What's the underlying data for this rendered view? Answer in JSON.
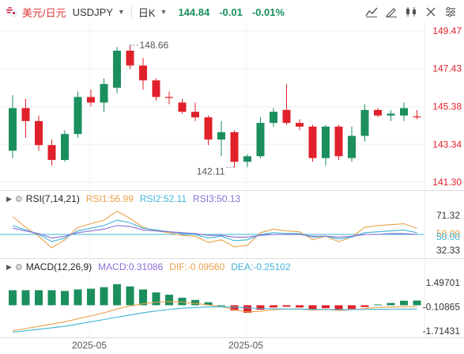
{
  "header": {
    "pair_cn": "美元/日元",
    "symbol": "USDJPY",
    "period": "日K",
    "price": "144.84",
    "change": "-0.01",
    "change_pct": "-0.01%",
    "colors": {
      "up": "#1b8f5e",
      "down": "#e0202a"
    },
    "tools": [
      "indicator-icon",
      "draw-icon",
      "chart-type-icon",
      "fullscreen-icon",
      "settings-icon"
    ]
  },
  "main_chart": {
    "y_labels": [
      "149.47",
      "147.43",
      "145.38",
      "143.34",
      "141.30"
    ],
    "high_label": "148.66",
    "low_label": "142.11",
    "candles": [
      {
        "o": 143.0,
        "h": 146.0,
        "l": 142.6,
        "c": 145.3
      },
      {
        "o": 145.3,
        "h": 145.8,
        "l": 143.7,
        "c": 144.6
      },
      {
        "o": 144.6,
        "h": 144.9,
        "l": 143.0,
        "c": 143.3
      },
      {
        "o": 143.3,
        "h": 143.6,
        "l": 142.2,
        "c": 142.5
      },
      {
        "o": 142.5,
        "h": 144.1,
        "l": 142.4,
        "c": 143.9
      },
      {
        "o": 143.9,
        "h": 146.2,
        "l": 143.7,
        "c": 145.9
      },
      {
        "o": 145.9,
        "h": 146.3,
        "l": 145.4,
        "c": 145.6
      },
      {
        "o": 145.6,
        "h": 146.9,
        "l": 145.1,
        "c": 146.6
      },
      {
        "o": 146.4,
        "h": 148.6,
        "l": 146.1,
        "c": 148.4
      },
      {
        "o": 148.4,
        "h": 148.7,
        "l": 147.4,
        "c": 147.6
      },
      {
        "o": 147.6,
        "h": 148.0,
        "l": 146.3,
        "c": 146.8
      },
      {
        "o": 146.8,
        "h": 146.9,
        "l": 145.7,
        "c": 145.9
      },
      {
        "o": 145.9,
        "h": 146.2,
        "l": 145.5,
        "c": 145.85
      },
      {
        "o": 145.6,
        "h": 145.8,
        "l": 145.0,
        "c": 145.1
      },
      {
        "o": 145.1,
        "h": 145.6,
        "l": 144.6,
        "c": 144.8
      },
      {
        "o": 144.8,
        "h": 144.9,
        "l": 143.3,
        "c": 143.6
      },
      {
        "o": 143.6,
        "h": 144.6,
        "l": 142.7,
        "c": 144.0
      },
      {
        "o": 144.0,
        "h": 144.1,
        "l": 142.1,
        "c": 142.4
      },
      {
        "o": 142.4,
        "h": 142.8,
        "l": 142.1,
        "c": 142.7
      },
      {
        "o": 142.7,
        "h": 144.8,
        "l": 142.6,
        "c": 144.5
      },
      {
        "o": 144.5,
        "h": 145.3,
        "l": 144.3,
        "c": 145.1
      },
      {
        "o": 145.2,
        "h": 146.6,
        "l": 144.4,
        "c": 144.5
      },
      {
        "o": 144.5,
        "h": 144.7,
        "l": 144.1,
        "c": 144.3
      },
      {
        "o": 144.3,
        "h": 144.4,
        "l": 142.4,
        "c": 142.6
      },
      {
        "o": 142.6,
        "h": 144.4,
        "l": 142.2,
        "c": 144.3
      },
      {
        "o": 144.3,
        "h": 144.4,
        "l": 142.5,
        "c": 142.7
      },
      {
        "o": 142.6,
        "h": 144.3,
        "l": 142.4,
        "c": 143.8
      },
      {
        "o": 143.8,
        "h": 145.5,
        "l": 143.5,
        "c": 145.2
      },
      {
        "o": 145.2,
        "h": 145.3,
        "l": 144.8,
        "c": 144.9
      },
      {
        "o": 144.9,
        "h": 145.2,
        "l": 144.6,
        "c": 145.0
      },
      {
        "o": 144.9,
        "h": 145.6,
        "l": 144.6,
        "c": 145.3
      },
      {
        "o": 144.85,
        "h": 145.2,
        "l": 144.7,
        "c": 144.84
      }
    ]
  },
  "rsi": {
    "title": "RSI(7,14,21)",
    "rsi1_label": "RSI1:56.99",
    "rsi2_label": "RSI2:52.11",
    "rsi3_label": "RSI3:50.13",
    "y_labels": [
      "71.32",
      "50.00",
      "50.00",
      "32.33"
    ],
    "rsi1": [
      70,
      58,
      48,
      35,
      44,
      58,
      62,
      66,
      76,
      68,
      58,
      54,
      52,
      49,
      48,
      41,
      44,
      36,
      38,
      52,
      56,
      54,
      53,
      44,
      48,
      42,
      47,
      58,
      60,
      61,
      62,
      57
    ],
    "rsi2": [
      60,
      55,
      50,
      42,
      46,
      54,
      57,
      60,
      66,
      63,
      57,
      55,
      53,
      51,
      50,
      46,
      48,
      43,
      44,
      50,
      52,
      51,
      51,
      47,
      48,
      45,
      47,
      52,
      53,
      54,
      55,
      52
    ],
    "rsi3": [
      57,
      54,
      51,
      46,
      48,
      52,
      54,
      56,
      60,
      59,
      55,
      54,
      53,
      52,
      51,
      49,
      49,
      47,
      47,
      49,
      50,
      50,
      50,
      48,
      48,
      47,
      48,
      50,
      50,
      51,
      51,
      50
    ]
  },
  "macd": {
    "title": "MACD(12,26,9)",
    "macd_label": "MACD:0.31086",
    "dif_label": "DIF:-0.09560",
    "dea_label": "DEA:-0.25102",
    "y_labels": [
      "1.49701",
      "-0.10865",
      "-1.71431"
    ],
    "hist": [
      1.0,
      1.0,
      1.0,
      1.0,
      0.95,
      1.05,
      1.1,
      1.2,
      1.4,
      1.25,
      1.05,
      0.85,
      0.7,
      0.5,
      0.35,
      0.2,
      0.0,
      -0.35,
      -0.5,
      -0.3,
      -0.15,
      -0.1,
      -0.15,
      -0.28,
      -0.2,
      -0.3,
      -0.25,
      -0.12,
      0.05,
      0.15,
      0.3,
      0.31
    ],
    "dif": [
      -1.7,
      -1.55,
      -1.4,
      -1.25,
      -1.1,
      -0.9,
      -0.7,
      -0.5,
      -0.25,
      -0.05,
      0.1,
      0.2,
      0.25,
      0.2,
      0.12,
      0.02,
      -0.1,
      -0.3,
      -0.45,
      -0.4,
      -0.3,
      -0.25,
      -0.25,
      -0.32,
      -0.28,
      -0.35,
      -0.3,
      -0.22,
      -0.15,
      -0.12,
      -0.1,
      -0.096
    ],
    "dea": [
      -1.8,
      -1.7,
      -1.6,
      -1.5,
      -1.4,
      -1.25,
      -1.1,
      -0.95,
      -0.8,
      -0.65,
      -0.5,
      -0.38,
      -0.28,
      -0.2,
      -0.15,
      -0.12,
      -0.1,
      -0.12,
      -0.18,
      -0.22,
      -0.24,
      -0.25,
      -0.26,
      -0.27,
      -0.28,
      -0.29,
      -0.29,
      -0.28,
      -0.27,
      -0.26,
      -0.255,
      -0.251
    ]
  },
  "x_axis": [
    "2025-05",
    "2025-05"
  ]
}
